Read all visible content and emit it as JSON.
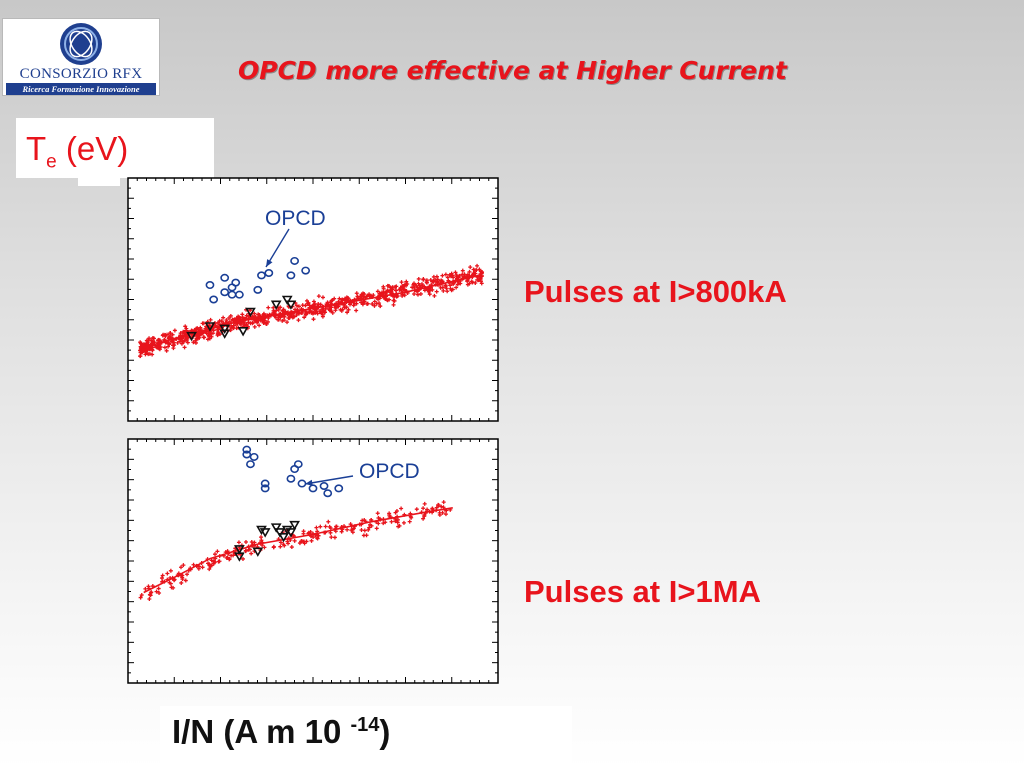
{
  "slide": {
    "title": "OPCD more effective at Higher Current",
    "logo": {
      "name": "CONSORZIO RFX",
      "tagline": "Ricerca Formazione Innovazione"
    },
    "ylabel_main": "T",
    "ylabel_sub": "e",
    "ylabel_unit": " (eV)",
    "xlabel_main": "I/N (A m 10 ",
    "xlabel_sup": "-14",
    "xlabel_close": ")",
    "colors": {
      "title": "#e8141c",
      "data": "#e8141c",
      "opcd": "#1a3f96",
      "triangles": "#111111"
    }
  },
  "chart_data": [
    {
      "type": "scatter",
      "panel_label": "Pulses at I>800kA",
      "annotation": "OPCD",
      "xlim": [
        0,
        1
      ],
      "ylim": [
        0,
        1
      ],
      "tick_labels": "none",
      "series": [
        {
          "marker": "plus",
          "color": "#e8141c",
          "points": "dense cloud",
          "cloud": {
            "x_range": [
              0.03,
              0.96
            ],
            "trend": [
              [
                0.04,
                0.3
              ],
              [
                0.3,
                0.41
              ],
              [
                0.55,
                0.47
              ],
              [
                0.95,
                0.6
              ]
            ],
            "spread": 0.05
          }
        },
        {
          "marker": "line",
          "color": "#e8141c",
          "points": [
            [
              0.04,
              0.3
            ],
            [
              0.15,
              0.35
            ],
            [
              0.3,
              0.41
            ],
            [
              0.45,
              0.45
            ],
            [
              0.6,
              0.49
            ],
            [
              0.75,
              0.53
            ],
            [
              0.95,
              0.6
            ]
          ]
        },
        {
          "name": "OPCD",
          "marker": "circle",
          "color": "#1a3f96",
          "points": [
            [
              0.22,
              0.56
            ],
            [
              0.26,
              0.59
            ],
            [
              0.28,
              0.55
            ],
            [
              0.28,
              0.52
            ],
            [
              0.29,
              0.57
            ],
            [
              0.3,
              0.52
            ],
            [
              0.23,
              0.5
            ],
            [
              0.36,
              0.6
            ],
            [
              0.35,
              0.54
            ],
            [
              0.38,
              0.61
            ],
            [
              0.45,
              0.66
            ],
            [
              0.44,
              0.6
            ],
            [
              0.48,
              0.62
            ],
            [
              0.26,
              0.53
            ]
          ]
        },
        {
          "marker": "triangle-down",
          "color": "#111111",
          "points": [
            [
              0.17,
              0.35
            ],
            [
              0.22,
              0.39
            ],
            [
              0.26,
              0.38
            ],
            [
              0.26,
              0.36
            ],
            [
              0.31,
              0.37
            ],
            [
              0.33,
              0.45
            ],
            [
              0.4,
              0.48
            ],
            [
              0.43,
              0.5
            ],
            [
              0.44,
              0.48
            ]
          ]
        }
      ]
    },
    {
      "type": "scatter",
      "panel_label": "Pulses at I>1MA",
      "annotation": "OPCD",
      "xlim": [
        0,
        1
      ],
      "ylim": [
        0,
        1
      ],
      "tick_labels": "none",
      "series": [
        {
          "marker": "plus",
          "color": "#e8141c",
          "points": "sparse cloud",
          "cloud": {
            "x_range": [
              0.03,
              0.88
            ],
            "trend": [
              [
                0.04,
                0.37
              ],
              [
                0.3,
                0.55
              ],
              [
                0.55,
                0.62
              ],
              [
                0.87,
                0.72
              ]
            ],
            "spread": 0.05
          }
        },
        {
          "marker": "line",
          "color": "#e8141c",
          "points": [
            [
              0.04,
              0.37
            ],
            [
              0.12,
              0.43
            ],
            [
              0.22,
              0.51
            ],
            [
              0.35,
              0.57
            ],
            [
              0.5,
              0.61
            ],
            [
              0.65,
              0.66
            ],
            [
              0.8,
              0.7
            ],
            [
              0.88,
              0.72
            ]
          ]
        },
        {
          "name": "OPCD",
          "marker": "circle",
          "color": "#1a3f96",
          "points": [
            [
              0.32,
              0.94
            ],
            [
              0.32,
              0.96
            ],
            [
              0.33,
              0.9
            ],
            [
              0.34,
              0.93
            ],
            [
              0.37,
              0.82
            ],
            [
              0.37,
              0.8
            ],
            [
              0.45,
              0.88
            ],
            [
              0.46,
              0.9
            ],
            [
              0.47,
              0.82
            ],
            [
              0.5,
              0.8
            ],
            [
              0.53,
              0.81
            ],
            [
              0.57,
              0.8
            ],
            [
              0.54,
              0.78
            ],
            [
              0.44,
              0.84
            ]
          ]
        },
        {
          "marker": "triangle-down",
          "color": "#111111",
          "points": [
            [
              0.3,
              0.55
            ],
            [
              0.35,
              0.54
            ],
            [
              0.36,
              0.63
            ],
            [
              0.37,
              0.62
            ],
            [
              0.4,
              0.64
            ],
            [
              0.41,
              0.62
            ],
            [
              0.42,
              0.6
            ],
            [
              0.43,
              0.63
            ],
            [
              0.44,
              0.62
            ],
            [
              0.45,
              0.65
            ],
            [
              0.3,
              0.52
            ]
          ]
        }
      ]
    }
  ]
}
